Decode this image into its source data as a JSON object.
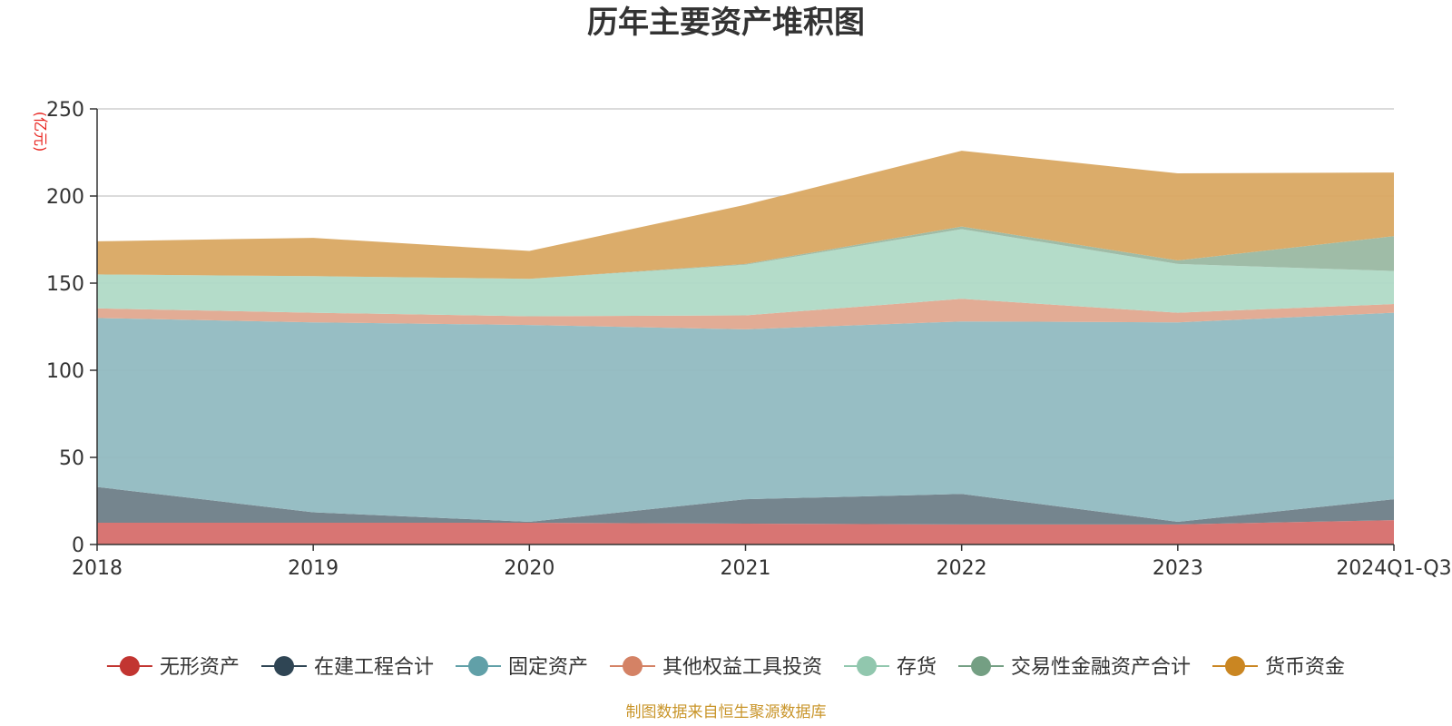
{
  "chart_data": {
    "type": "area",
    "stacked": true,
    "title": "历年主要资产堆积图",
    "y_unit": "(亿元)",
    "categories": [
      "2018",
      "2019",
      "2020",
      "2021",
      "2022",
      "2023",
      "2024Q1-Q3"
    ],
    "ylim": [
      0,
      250
    ],
    "y_ticks": [
      0,
      50,
      100,
      150,
      200,
      250
    ],
    "grid": true,
    "legend_position": "bottom",
    "series": [
      {
        "name": "无形资产",
        "color": "#c23531",
        "fill": "#d66e6b",
        "values": [
          12.5,
          12.5,
          12.5,
          12,
          11.5,
          11.5,
          14
        ]
      },
      {
        "name": "在建工程合计",
        "color": "#2f4554",
        "fill": "#6e7e88",
        "values": [
          20.5,
          6,
          0.5,
          14,
          17.5,
          1.5,
          12
        ]
      },
      {
        "name": "固定资产",
        "color": "#61a0a8",
        "fill": "#91bbc1",
        "values": [
          97,
          109,
          113,
          97.5,
          99,
          114.5,
          107
        ]
      },
      {
        "name": "其他权益工具投资",
        "color": "#d48265",
        "fill": "#e0a88f",
        "values": [
          5.5,
          5.5,
          5,
          8,
          13,
          5.5,
          5
        ]
      },
      {
        "name": "存货",
        "color": "#91c7ae",
        "fill": "#b0dac6",
        "values": [
          19.5,
          21,
          21.5,
          29,
          40,
          28,
          19
        ]
      },
      {
        "name": "交易性金融资产合计",
        "color": "#749f83",
        "fill": "#9ab8a2",
        "values": [
          0,
          0,
          0,
          0.5,
          1.5,
          2,
          20
        ]
      },
      {
        "name": "货币资金",
        "color": "#ca8622",
        "fill": "#d9a862",
        "values": [
          19,
          22,
          16,
          34,
          43.5,
          50,
          36.5
        ]
      }
    ]
  },
  "source_note": "制图数据来自恒生聚源数据库"
}
